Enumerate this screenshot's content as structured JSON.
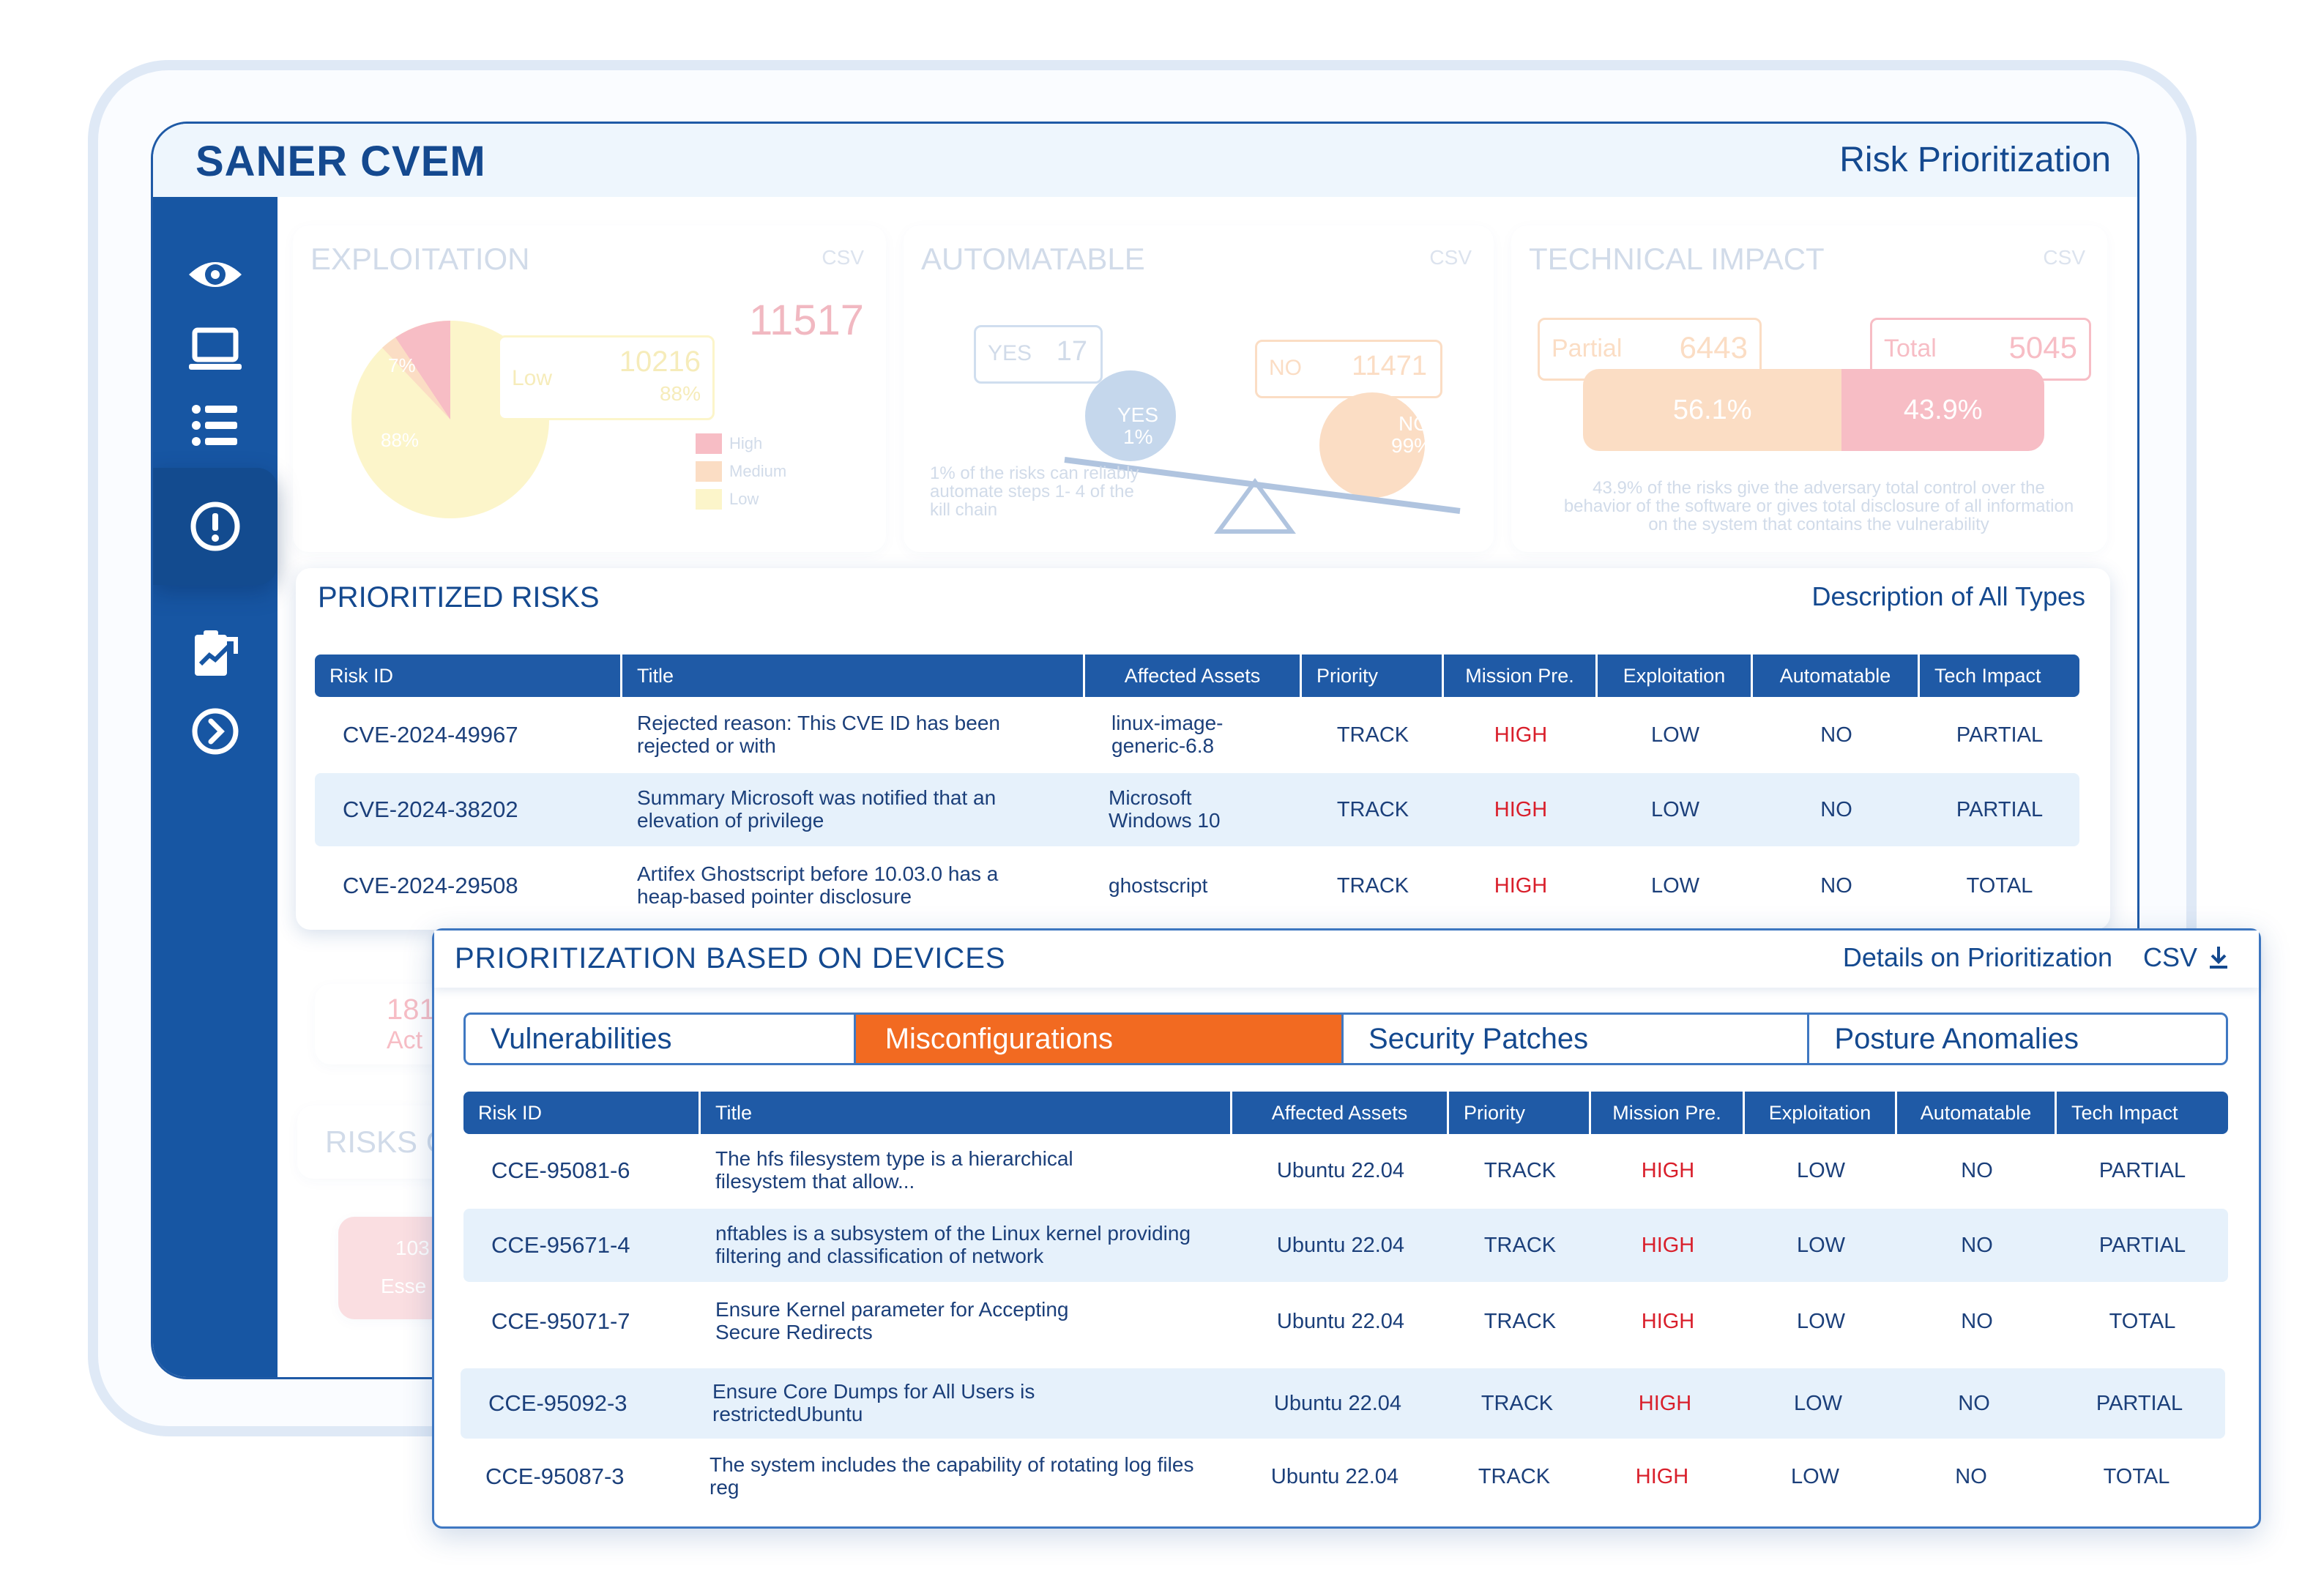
{
  "app": {
    "brand": "SANER CVEM",
    "page_title": "Risk Prioritization"
  },
  "sidebar": {
    "items": [
      {
        "icon": "eye-icon"
      },
      {
        "icon": "laptop-icon"
      },
      {
        "icon": "list-icon"
      },
      {
        "icon": "alert-icon"
      },
      {
        "icon": "clipboard-chart-icon"
      },
      {
        "icon": "chevron-right-circle-icon"
      }
    ]
  },
  "overview": {
    "exploitation": {
      "title": "EXPLOITATION",
      "csv": "CSV",
      "total": "11517",
      "callout_label": "Low",
      "callout_value": "10216",
      "callout_pct": "88%",
      "slice_high": "7%",
      "slice_low": "88%",
      "legend": [
        "High",
        "Medium",
        "Low"
      ]
    },
    "automatable": {
      "title": "AUTOMATABLE",
      "csv": "CSV",
      "yes_label": "YES",
      "yes_value": "17",
      "yes_pct_label": "YES",
      "yes_pct": "1%",
      "no_label": "NO",
      "no_value": "11471",
      "no_pct_label": "NO",
      "no_pct": "99%",
      "note": "1% of the risks can reliably automate steps 1- 4 of the kill chain"
    },
    "technical_impact": {
      "title": "TECHNICAL IMPACT",
      "csv": "CSV",
      "partial_label": "Partial",
      "partial_value": "6443",
      "total_label": "Total",
      "total_value": "5045",
      "partial_pct": "56.1%",
      "total_pct": "43.9%",
      "note": "43.9% of the risks give the adversary total control over the behavior of the software or gives total disclosure of all information on the system that contains the vulnerability"
    },
    "hidden_card_a": {
      "value": "181",
      "label": "Act"
    },
    "hidden_card_b": {
      "title": "RISKS C",
      "value": "103",
      "label": "Esse"
    }
  },
  "prioritized_risks": {
    "title": "PRIORITIZED RISKS",
    "link": "Description of All Types",
    "columns": [
      "Risk ID",
      "Title",
      "Affected Assets",
      "Priority",
      "Mission Pre.",
      "Exploitation",
      "Automatable",
      "Tech Impact"
    ],
    "rows": [
      {
        "id": "CVE-2024-49967",
        "title": "Rejected reason: This CVE ID has been rejected or with",
        "assets": "linux-image-generic-6.8",
        "priority": "TRACK",
        "mission": "HIGH",
        "exploitation": "LOW",
        "automatable": "NO",
        "impact": "PARTIAL"
      },
      {
        "id": "CVE-2024-38202",
        "title": "Summary Microsoft was notified that an elevation of privilege",
        "assets": "Microsoft Windows 10",
        "priority": "TRACK",
        "mission": "HIGH",
        "exploitation": "LOW",
        "automatable": "NO",
        "impact": "PARTIAL"
      },
      {
        "id": "CVE-2024-29508",
        "title": "Artifex Ghostscript before 10.03.0 has a heap-based pointer disclosure",
        "assets": "ghostscript",
        "priority": "TRACK",
        "mission": "HIGH",
        "exploitation": "LOW",
        "automatable": "NO",
        "impact": "TOTAL"
      }
    ]
  },
  "devices": {
    "title": "PRIORITIZATION BASED ON DEVICES",
    "link": "Details on Prioritization",
    "csv": "CSV",
    "tabs": [
      "Vulnerabilities",
      "Misconfigurations",
      "Security Patches",
      "Posture Anomalies"
    ],
    "active_tab": "Misconfigurations",
    "columns": [
      "Risk ID",
      "Title",
      "Affected Assets",
      "Priority",
      "Mission Pre.",
      "Exploitation",
      "Automatable",
      "Tech Impact"
    ],
    "rows": [
      {
        "id": "CCE-95081-6",
        "title": "The hfs filesystem type is a hierarchical filesystem that allow...",
        "assets": "Ubuntu 22.04",
        "priority": "TRACK",
        "mission": "HIGH",
        "exploitation": "LOW",
        "automatable": "NO",
        "impact": "PARTIAL"
      },
      {
        "id": "CCE-95671-4",
        "title": "nftables is a subsystem of the Linux kernel providing filtering and classification of network",
        "assets": "Ubuntu 22.04",
        "priority": "TRACK",
        "mission": "HIGH",
        "exploitation": "LOW",
        "automatable": "NO",
        "impact": "PARTIAL"
      },
      {
        "id": "CCE-95071-7",
        "title": "Ensure Kernel parameter for Accepting Secure Redirects",
        "assets": "Ubuntu 22.04",
        "priority": "TRACK",
        "mission": "HIGH",
        "exploitation": "LOW",
        "automatable": "NO",
        "impact": "TOTAL"
      },
      {
        "id": "CCE-95092-3",
        "title": "Ensure Core Dumps for All Users is restrictedUbuntu",
        "assets": "Ubuntu 22.04",
        "priority": "TRACK",
        "mission": "HIGH",
        "exploitation": "LOW",
        "automatable": "NO",
        "impact": "PARTIAL"
      },
      {
        "id": "CCE-95087-3",
        "title": "The system includes the capability of rotating log files reg",
        "assets": "Ubuntu 22.04",
        "priority": "TRACK",
        "mission": "HIGH",
        "exploitation": "LOW",
        "automatable": "NO",
        "impact": "TOTAL"
      }
    ]
  },
  "colors": {
    "brand_blue": "#1756a3",
    "table_header": "#1f5aa6",
    "active_tab": "#f26a21",
    "high_text": "#d91f2b",
    "row_alt": "#e6f1fb"
  }
}
